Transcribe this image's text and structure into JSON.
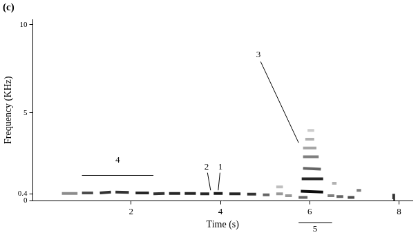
{
  "chart_data": {
    "type": "spectrogram",
    "panel": "(c)",
    "xlabel": "Time (s)",
    "ylabel": "Frequency (KHz)",
    "xlim": [
      -0.2,
      8.3
    ],
    "xticks": [
      2,
      4,
      6,
      8
    ],
    "ylim": [
      0,
      10.3
    ],
    "yticks": [
      0,
      0.4,
      5,
      10
    ],
    "grid": false,
    "color": "#000000",
    "segments": [
      {
        "t": [
          0.45,
          0.8
        ],
        "f": [
          0.42,
          0.42
        ],
        "intensity": 0.45
      },
      {
        "t": [
          0.9,
          1.15
        ],
        "f": [
          0.45,
          0.45
        ],
        "intensity": 0.7
      },
      {
        "t": [
          1.3,
          1.55
        ],
        "f": [
          0.45,
          0.5
        ],
        "intensity": 0.8
      },
      {
        "t": [
          1.65,
          1.95
        ],
        "f": [
          0.5,
          0.48
        ],
        "intensity": 0.8
      },
      {
        "t": [
          2.1,
          2.4
        ],
        "f": [
          0.45,
          0.45
        ],
        "intensity": 0.85
      },
      {
        "t": [
          2.5,
          2.75
        ],
        "f": [
          0.4,
          0.42
        ],
        "intensity": 0.8
      },
      {
        "t": [
          2.85,
          3.1
        ],
        "f": [
          0.42,
          0.42
        ],
        "intensity": 0.85
      },
      {
        "t": [
          3.2,
          3.45
        ],
        "f": [
          0.42,
          0.42
        ],
        "intensity": 0.85
      },
      {
        "t": [
          3.55,
          3.75
        ],
        "f": [
          0.4,
          0.4
        ],
        "intensity": 0.85
      },
      {
        "t": [
          3.85,
          4.05
        ],
        "f": [
          0.42,
          0.42
        ],
        "intensity": 0.9
      },
      {
        "t": [
          4.2,
          4.45
        ],
        "f": [
          0.4,
          0.4
        ],
        "intensity": 0.85
      },
      {
        "t": [
          4.6,
          4.8
        ],
        "f": [
          0.38,
          0.38
        ],
        "intensity": 0.8
      },
      {
        "t": [
          4.95,
          5.1
        ],
        "f": [
          0.35,
          0.35
        ],
        "intensity": 0.6
      },
      {
        "t": [
          5.25,
          5.4
        ],
        "f": [
          0.4,
          0.4
        ],
        "intensity": 0.4
      },
      {
        "t": [
          5.25,
          5.4
        ],
        "f": [
          0.8,
          0.8
        ],
        "intensity": 0.25
      },
      {
        "t": [
          5.45,
          5.6
        ],
        "f": [
          0.3,
          0.3
        ],
        "intensity": 0.4
      },
      {
        "t": [
          5.75,
          5.95
        ],
        "f": [
          0.2,
          0.2
        ],
        "intensity": 0.6
      },
      {
        "t": [
          5.8,
          6.3
        ],
        "f": [
          0.55,
          0.5
        ],
        "intensity": 0.95
      },
      {
        "t": [
          5.82,
          6.3
        ],
        "f": [
          1.25,
          1.25
        ],
        "intensity": 0.85
      },
      {
        "t": [
          5.85,
          6.25
        ],
        "f": [
          1.85,
          1.8
        ],
        "intensity": 0.6
      },
      {
        "t": [
          5.85,
          6.2
        ],
        "f": [
          2.5,
          2.5
        ],
        "intensity": 0.5
      },
      {
        "t": [
          5.85,
          6.15
        ],
        "f": [
          3.0,
          3.0
        ],
        "intensity": 0.35
      },
      {
        "t": [
          5.9,
          6.1
        ],
        "f": [
          3.5,
          3.5
        ],
        "intensity": 0.3
      },
      {
        "t": [
          5.95,
          6.1
        ],
        "f": [
          4.0,
          4.0
        ],
        "intensity": 0.2
      },
      {
        "t": [
          6.4,
          6.55
        ],
        "f": [
          0.3,
          0.3
        ],
        "intensity": 0.5
      },
      {
        "t": [
          6.5,
          6.6
        ],
        "f": [
          1.0,
          1.0
        ],
        "intensity": 0.3
      },
      {
        "t": [
          6.6,
          6.75
        ],
        "f": [
          0.25,
          0.25
        ],
        "intensity": 0.6
      },
      {
        "t": [
          6.85,
          7.0
        ],
        "f": [
          0.2,
          0.2
        ],
        "intensity": 0.7
      },
      {
        "t": [
          7.05,
          7.15
        ],
        "f": [
          0.6,
          0.6
        ],
        "intensity": 0.5
      },
      {
        "t": [
          7.87,
          7.88
        ],
        "f": [
          0.1,
          0.4
        ],
        "intensity": 0.8
      }
    ],
    "annotations": [
      {
        "text": "4",
        "x": 1.7,
        "y": 2.3,
        "line": [
          [
            0.9,
            1.45
          ],
          [
            2.5,
            1.45
          ]
        ]
      },
      {
        "text": "2",
        "x": 3.69,
        "y": 1.9,
        "line": [
          [
            3.71,
            1.6
          ],
          [
            3.78,
            0.6
          ]
        ]
      },
      {
        "text": "1",
        "x": 4.0,
        "y": 1.9,
        "line": [
          [
            3.99,
            1.6
          ],
          [
            3.95,
            0.6
          ]
        ]
      },
      {
        "text": "3",
        "x": 4.85,
        "y": 8.3,
        "line": [
          [
            4.9,
            7.9
          ],
          [
            5.75,
            3.3
          ]
        ]
      },
      {
        "text": "5",
        "x": 6.12,
        "below_axis": true,
        "line_x": [
          5.75,
          6.5
        ]
      }
    ]
  }
}
